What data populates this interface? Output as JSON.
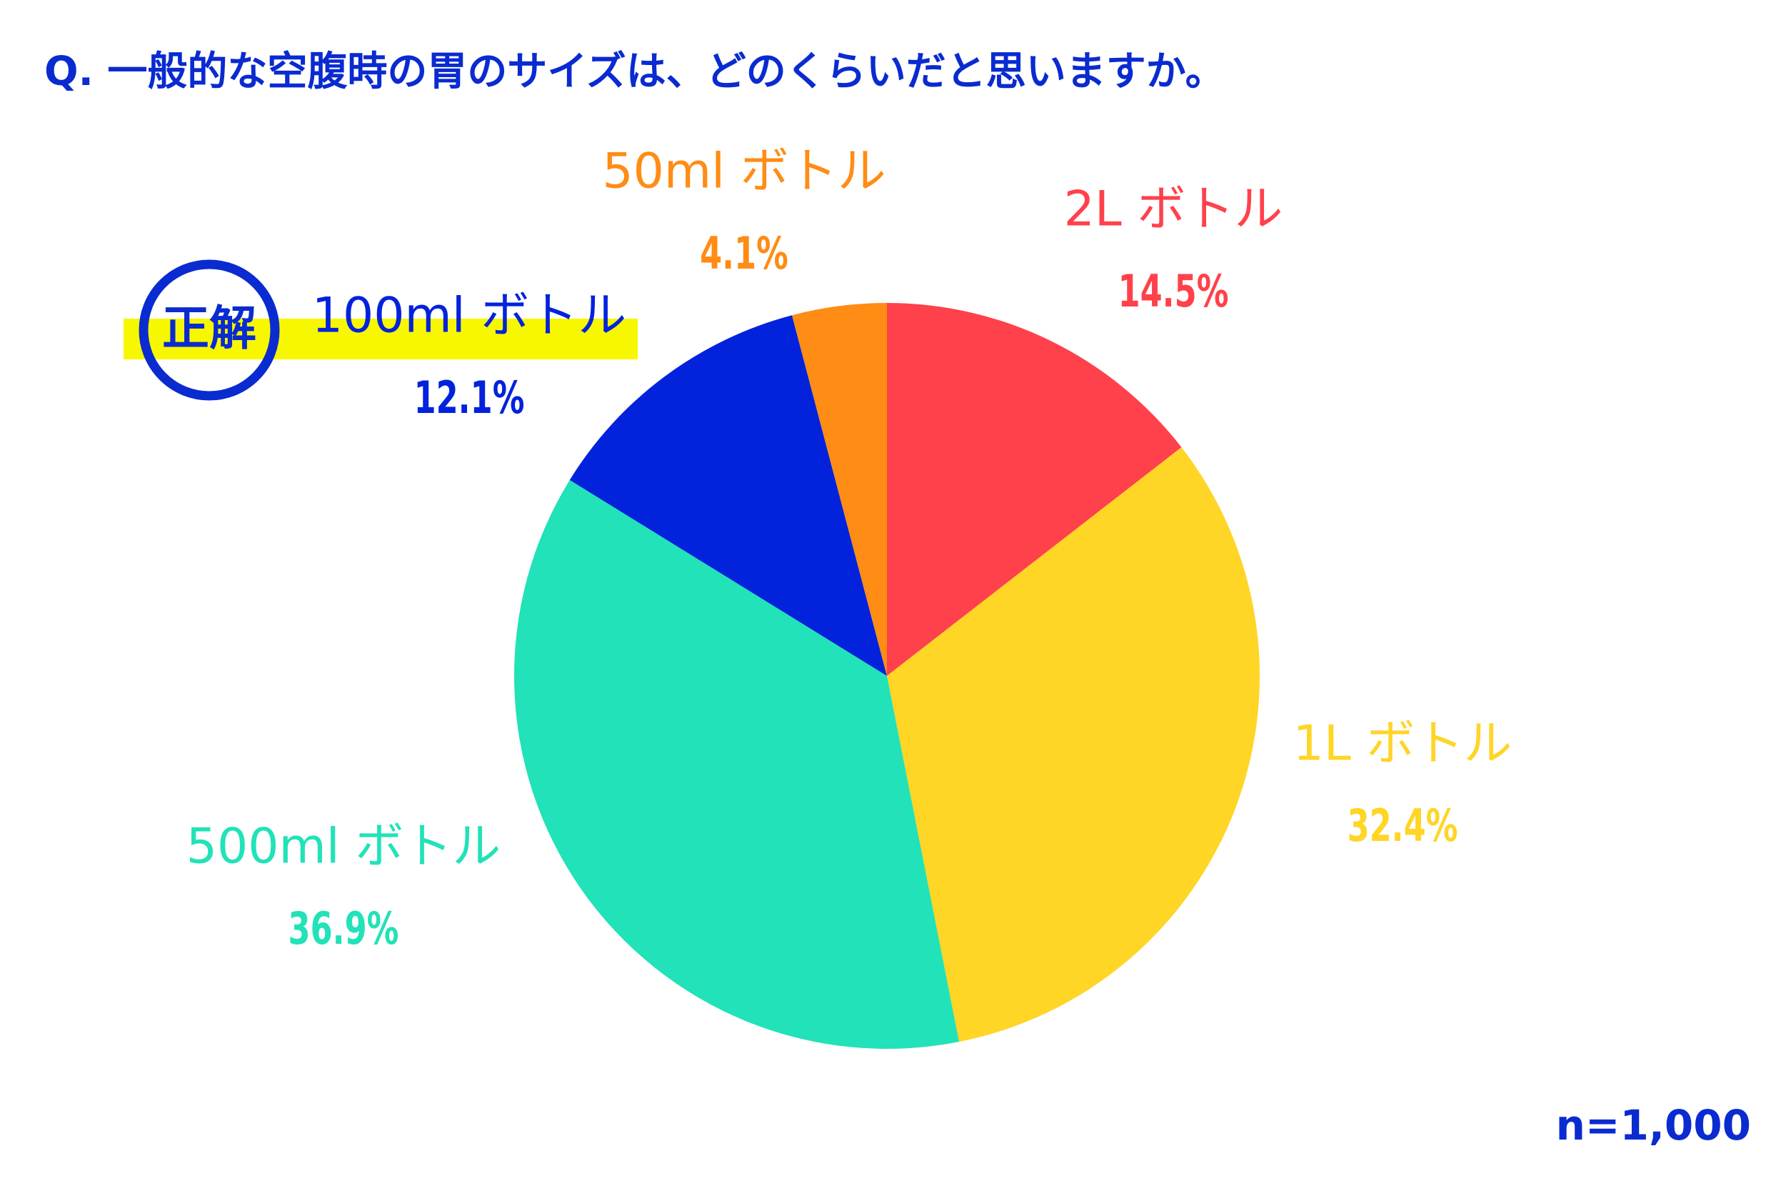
{
  "chart_data": {
    "type": "pie",
    "title": "Q. 一般的な空腹時の胃のサイズは、どのくらいだと思いますか。",
    "categories": [
      "2L ボトル",
      "1L ボトル",
      "500ml ボトル",
      "100ml ボトル",
      "50ml ボトル"
    ],
    "values": [
      14.5,
      32.4,
      36.9,
      12.1,
      4.1
    ],
    "value_labels": [
      "14.5%",
      "32.4%",
      "36.9%",
      "12.1%",
      "4.1%"
    ],
    "colors": [
      "#ff414b",
      "#ffd526",
      "#21e2b8",
      "#0222dc",
      "#ff8c14"
    ],
    "answer_label": "正解",
    "answer_index": 3,
    "note": "n=1,000"
  }
}
